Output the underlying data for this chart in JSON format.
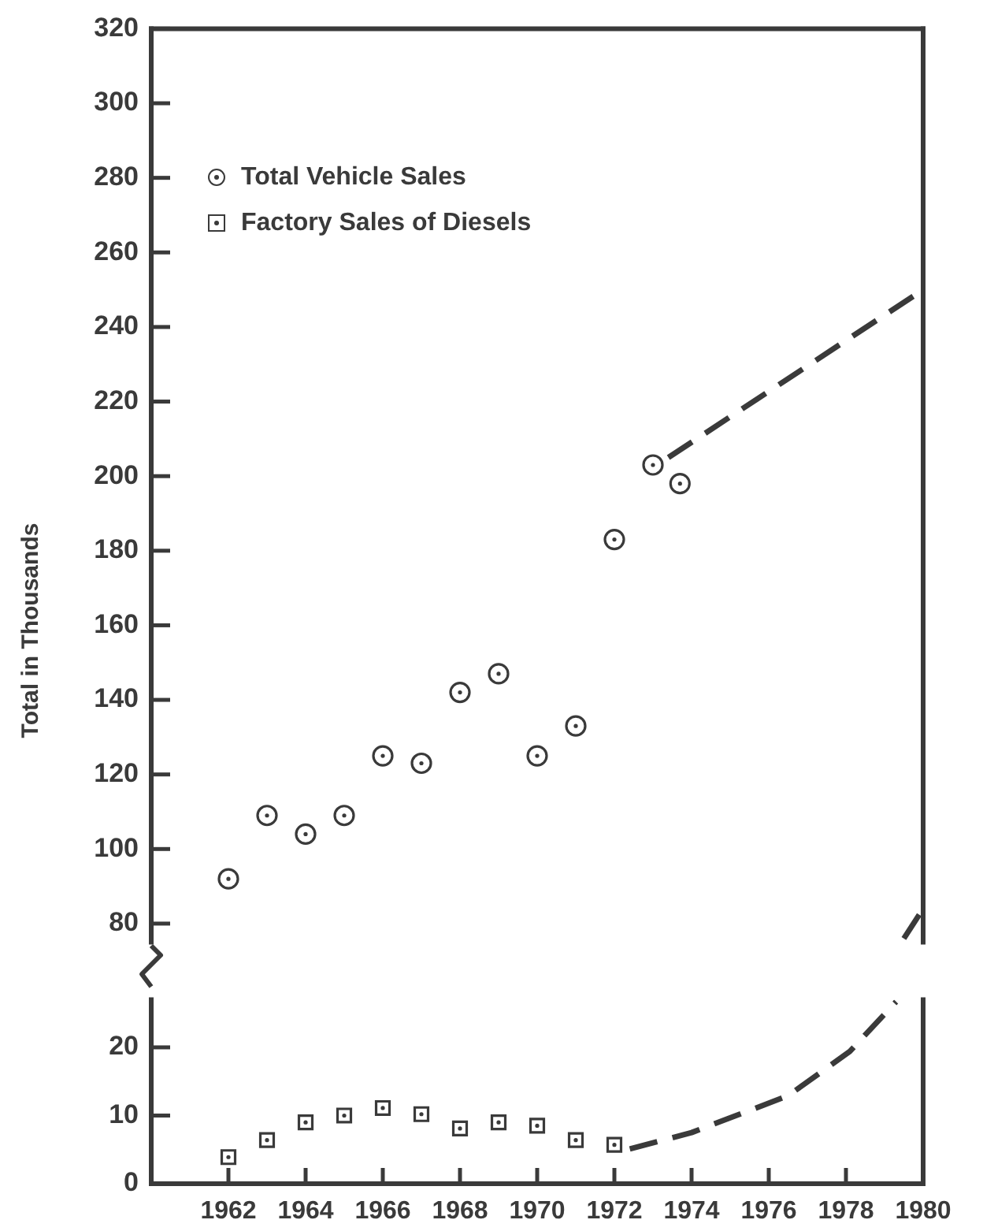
{
  "chart_data": [
    {
      "type": "scatter",
      "ylabel": "Total in Thousands",
      "xlim": [
        1960,
        1980
      ],
      "ylim": [
        75,
        320
      ],
      "yticks": [
        80,
        100,
        120,
        140,
        160,
        180,
        200,
        220,
        240,
        260,
        280,
        300,
        320
      ],
      "tick_labels": "y",
      "grid": false,
      "legend": "top left",
      "marker": "circle",
      "series": [
        {
          "name": "Total Vehicle Sales",
          "color": "#3a3a3a",
          "x": [
            1962,
            1963,
            1964,
            1965,
            1966,
            1967,
            1968,
            1969,
            1970,
            1971,
            1972,
            1973,
            1973.7
          ],
          "values": [
            92,
            109,
            104,
            109,
            125,
            123,
            142,
            147,
            125,
            133,
            183,
            203,
            198
          ]
        },
        {
          "type": "line",
          "marker": "none",
          "line_style": "dashed",
          "color": "#3a3a3a",
          "x": [
            1973.4,
            1980
          ],
          "values": [
            205,
            250
          ]
        },
        {
          "type": "line",
          "marker": "none",
          "line_style": "dashed",
          "color": "#3a3a3a",
          "x": [
            1979.5,
            1980
          ],
          "values": [
            76,
            84
          ]
        }
      ]
    },
    {
      "type": "scatter",
      "xlim": [
        1960,
        1980
      ],
      "xticks": [
        1962,
        1964,
        1966,
        1968,
        1970,
        1972,
        1974,
        1976,
        1978,
        1980
      ],
      "ylim": [
        0,
        27
      ],
      "yticks": [
        0,
        10,
        20
      ],
      "grid": false,
      "legend": "top left",
      "marker": "square",
      "series": [
        {
          "name": "Factory Sales of Diesels",
          "color": "#3a3a3a",
          "x": [
            1962,
            1963,
            1964,
            1965,
            1966,
            1967,
            1968,
            1969,
            1970,
            1971,
            1972
          ],
          "values": [
            3.9,
            6.4,
            9.0,
            10.0,
            11.1,
            10.2,
            8.1,
            9.0,
            8.5,
            6.4,
            5.7
          ]
        },
        {
          "type": "line",
          "marker": "none",
          "line_style": "dashed",
          "color": "#3a3a3a",
          "x": [
            1972.4,
            1974,
            1976.5,
            1978.1,
            1979.3
          ],
          "values": [
            5.1,
            7.5,
            12.9,
            19.4,
            26.7
          ]
        }
      ]
    }
  ]
}
